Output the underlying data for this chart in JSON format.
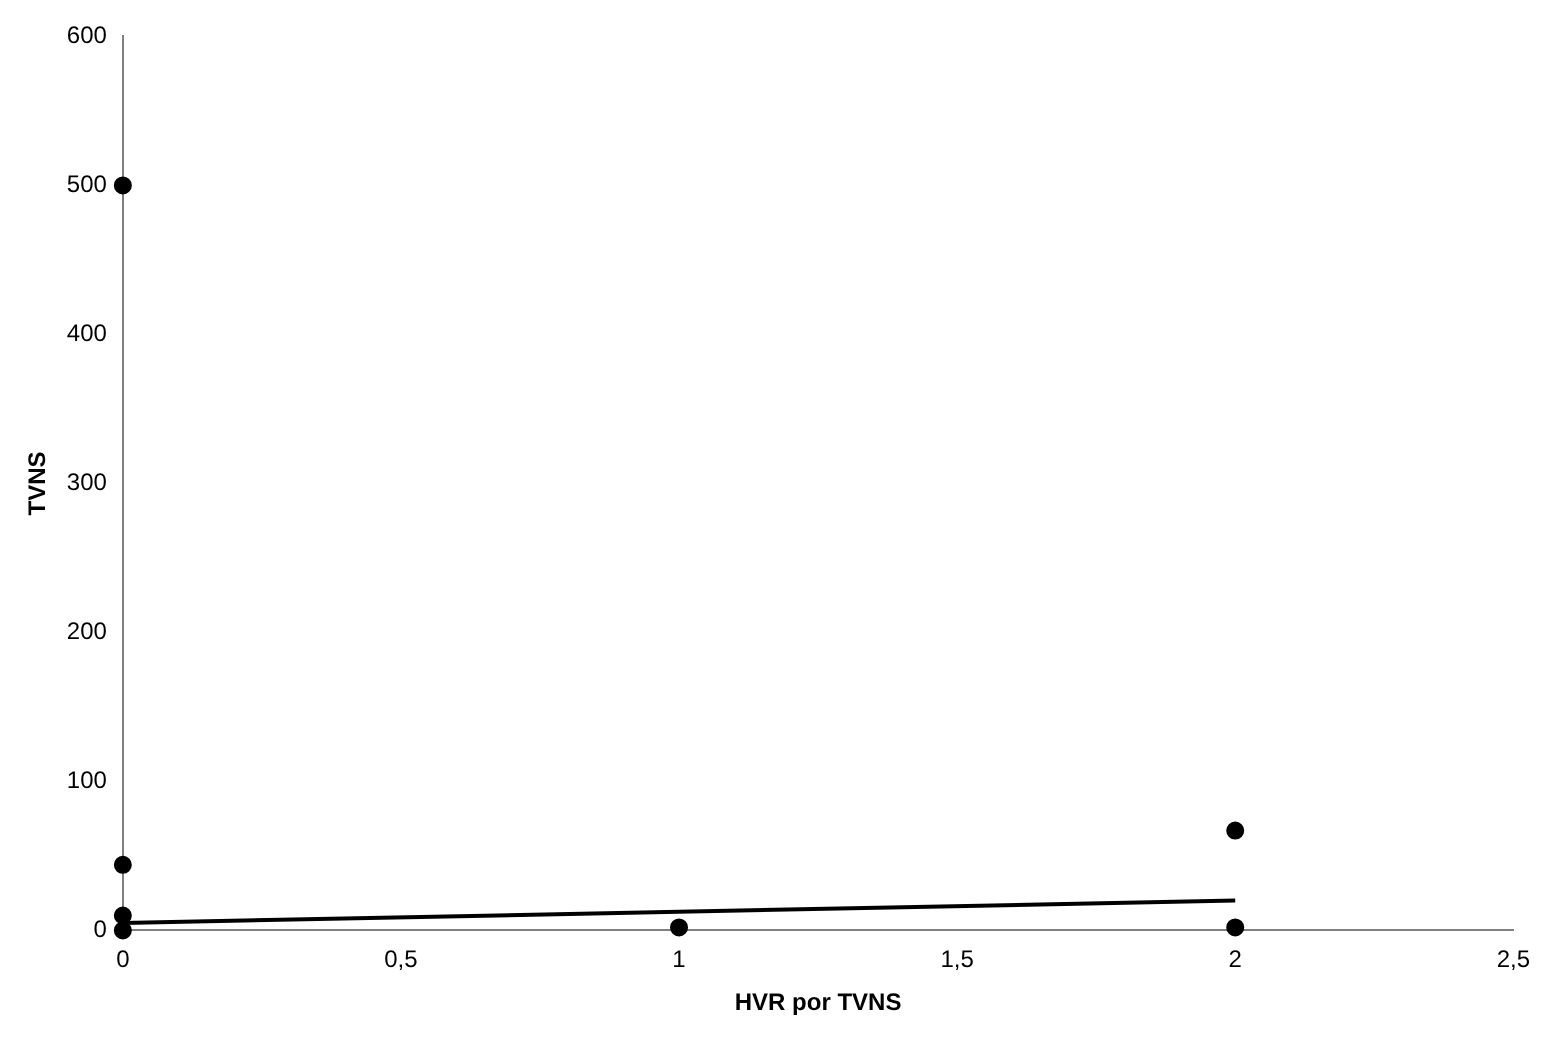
{
  "chart_data": {
    "type": "scatter",
    "xlabel": "HVR por TVNS",
    "ylabel": "TVNS",
    "xlim": [
      0,
      2.5
    ],
    "ylim": [
      0,
      600
    ],
    "xticks": [
      0,
      {
        "value": 0.5,
        "label": "0,5"
      },
      1,
      {
        "value": 1.5,
        "label": "1,5"
      },
      2,
      {
        "value": 2.5,
        "label": "2,5"
      }
    ],
    "yticks": [
      0,
      100,
      200,
      300,
      400,
      500,
      600
    ],
    "grid": false,
    "legend": false,
    "marker": "circle",
    "series": [
      {
        "color": "#000000",
        "x": [
          0,
          0,
          0,
          0,
          1,
          2,
          2
        ],
        "values": [
          500,
          44,
          10,
          0,
          2,
          67,
          2
        ]
      },
      {
        "type": "line",
        "color": "#000000",
        "x": [
          0,
          2
        ],
        "values": [
          5,
          20
        ],
        "marker": "none",
        "line_style": "solid"
      }
    ]
  }
}
